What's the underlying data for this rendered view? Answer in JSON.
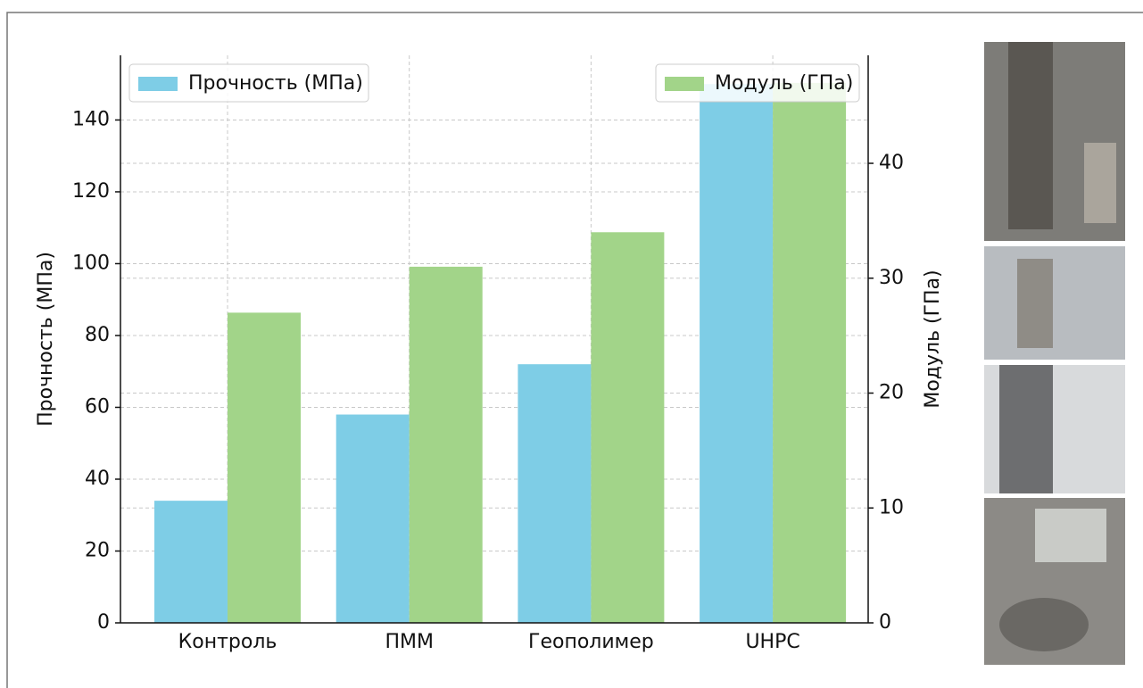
{
  "chart_data": {
    "type": "bar",
    "categories": [
      "Контроль",
      "ПММ",
      "Геополимер",
      "UHPC"
    ],
    "y_label": "Прочность (МПа)",
    "y2_label": "Модуль (ГПа)",
    "series": [
      {
        "name": "Прочность (МПа)",
        "color": "#7ecde6",
        "values": [
          34,
          58,
          72,
          150
        ]
      },
      {
        "name": "Модуль (ГПа)",
        "color": "#a2d489",
        "values": [
          27,
          31,
          34,
          47
        ],
        "axis": "y2"
      }
    ],
    "ylim": [
      0,
      158
    ],
    "yticks": [
      0,
      20,
      40,
      60,
      80,
      100,
      120,
      140
    ],
    "y2lim": [
      0,
      49.4
    ],
    "y2ticks": [
      0,
      10,
      20,
      30,
      40
    ],
    "grid": true,
    "legend": [
      "upper left",
      "upper right"
    ]
  }
}
